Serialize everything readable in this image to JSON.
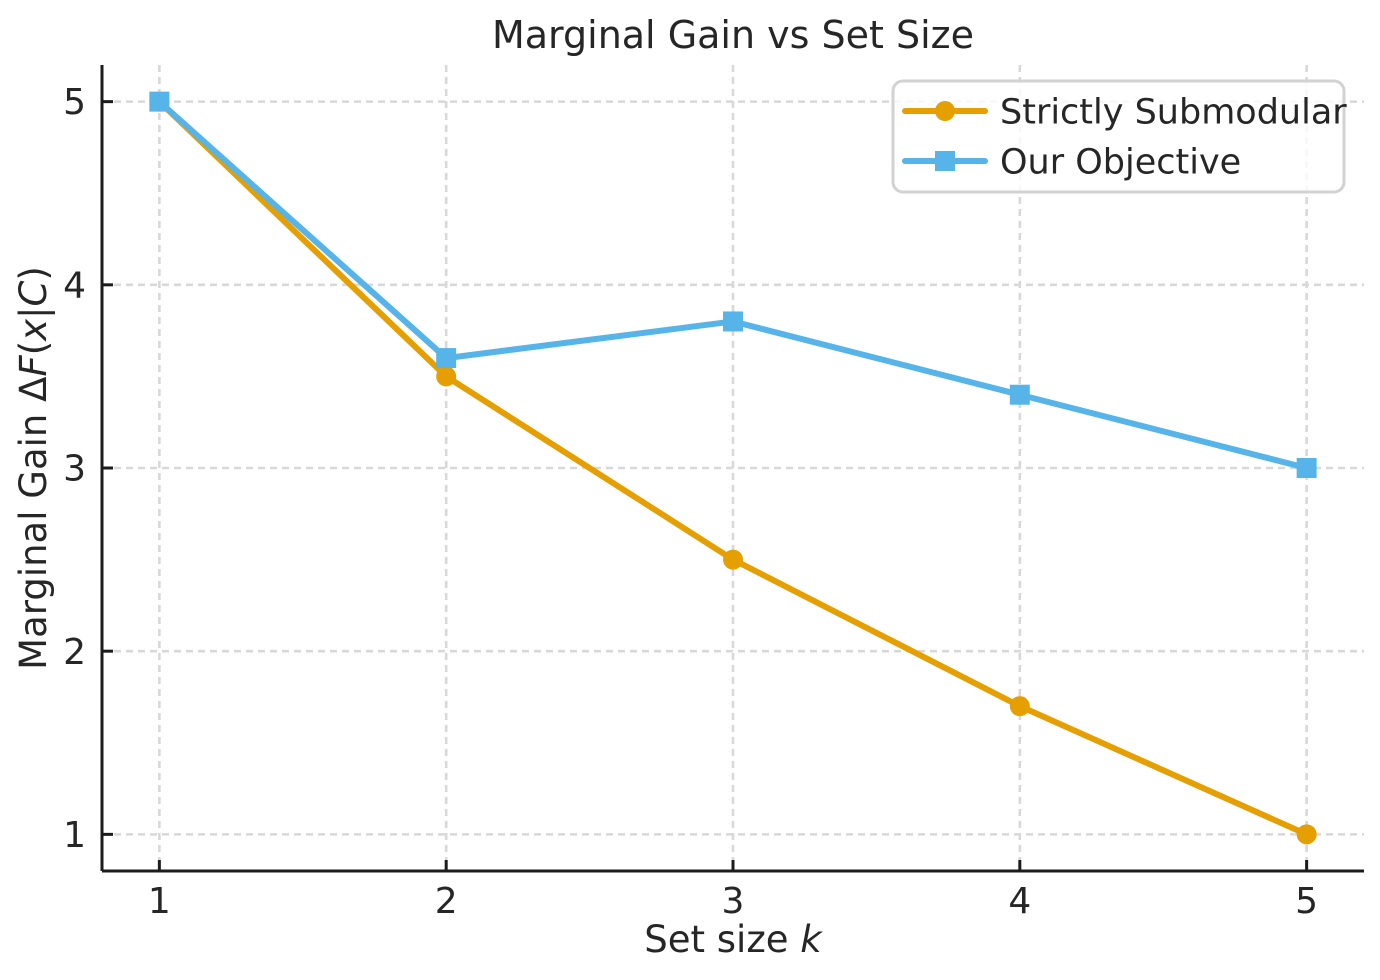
{
  "figure": {
    "background": "#ffffff",
    "text_color": "#262626",
    "axis_color": "#1c1c1c",
    "grid_color": "#d8d8d8"
  },
  "chart_data": {
    "type": "line",
    "title": "Marginal Gain vs Set Size",
    "xlabel": "Set size k",
    "ylabel": "Marginal Gain ΔF(x|C)",
    "xlabel_parts": [
      {
        "text": "Set size ",
        "italic": false
      },
      {
        "text": "k",
        "italic": true
      }
    ],
    "ylabel_parts": [
      {
        "text": "Marginal Gain Δ",
        "italic": false
      },
      {
        "text": "F",
        "italic": true
      },
      {
        "text": "(",
        "italic": false
      },
      {
        "text": "x",
        "italic": true
      },
      {
        "text": "|",
        "italic": false
      },
      {
        "text": "C",
        "italic": true
      },
      {
        "text": ")",
        "italic": false
      }
    ],
    "x": [
      1,
      2,
      3,
      4,
      5
    ],
    "series": [
      {
        "name": "Strictly Submodular",
        "color": "#E69F00",
        "marker": "circle",
        "values": [
          5.0,
          3.5,
          2.5,
          1.7,
          1.0
        ]
      },
      {
        "name": "Our Objective",
        "color": "#56B4E9",
        "marker": "square",
        "values": [
          5.0,
          3.6,
          3.8,
          3.4,
          3.0
        ]
      }
    ],
    "xticks": [
      1,
      2,
      3,
      4,
      5
    ],
    "yticks": [
      1,
      2,
      3,
      4,
      5
    ],
    "xlim": [
      0.8,
      5.2
    ],
    "ylim": [
      0.8,
      5.2
    ],
    "grid": {
      "on": true,
      "style": "dashed"
    },
    "legend": {
      "position": "top-right",
      "entries": [
        "Strictly Submodular",
        "Our Objective"
      ]
    }
  }
}
